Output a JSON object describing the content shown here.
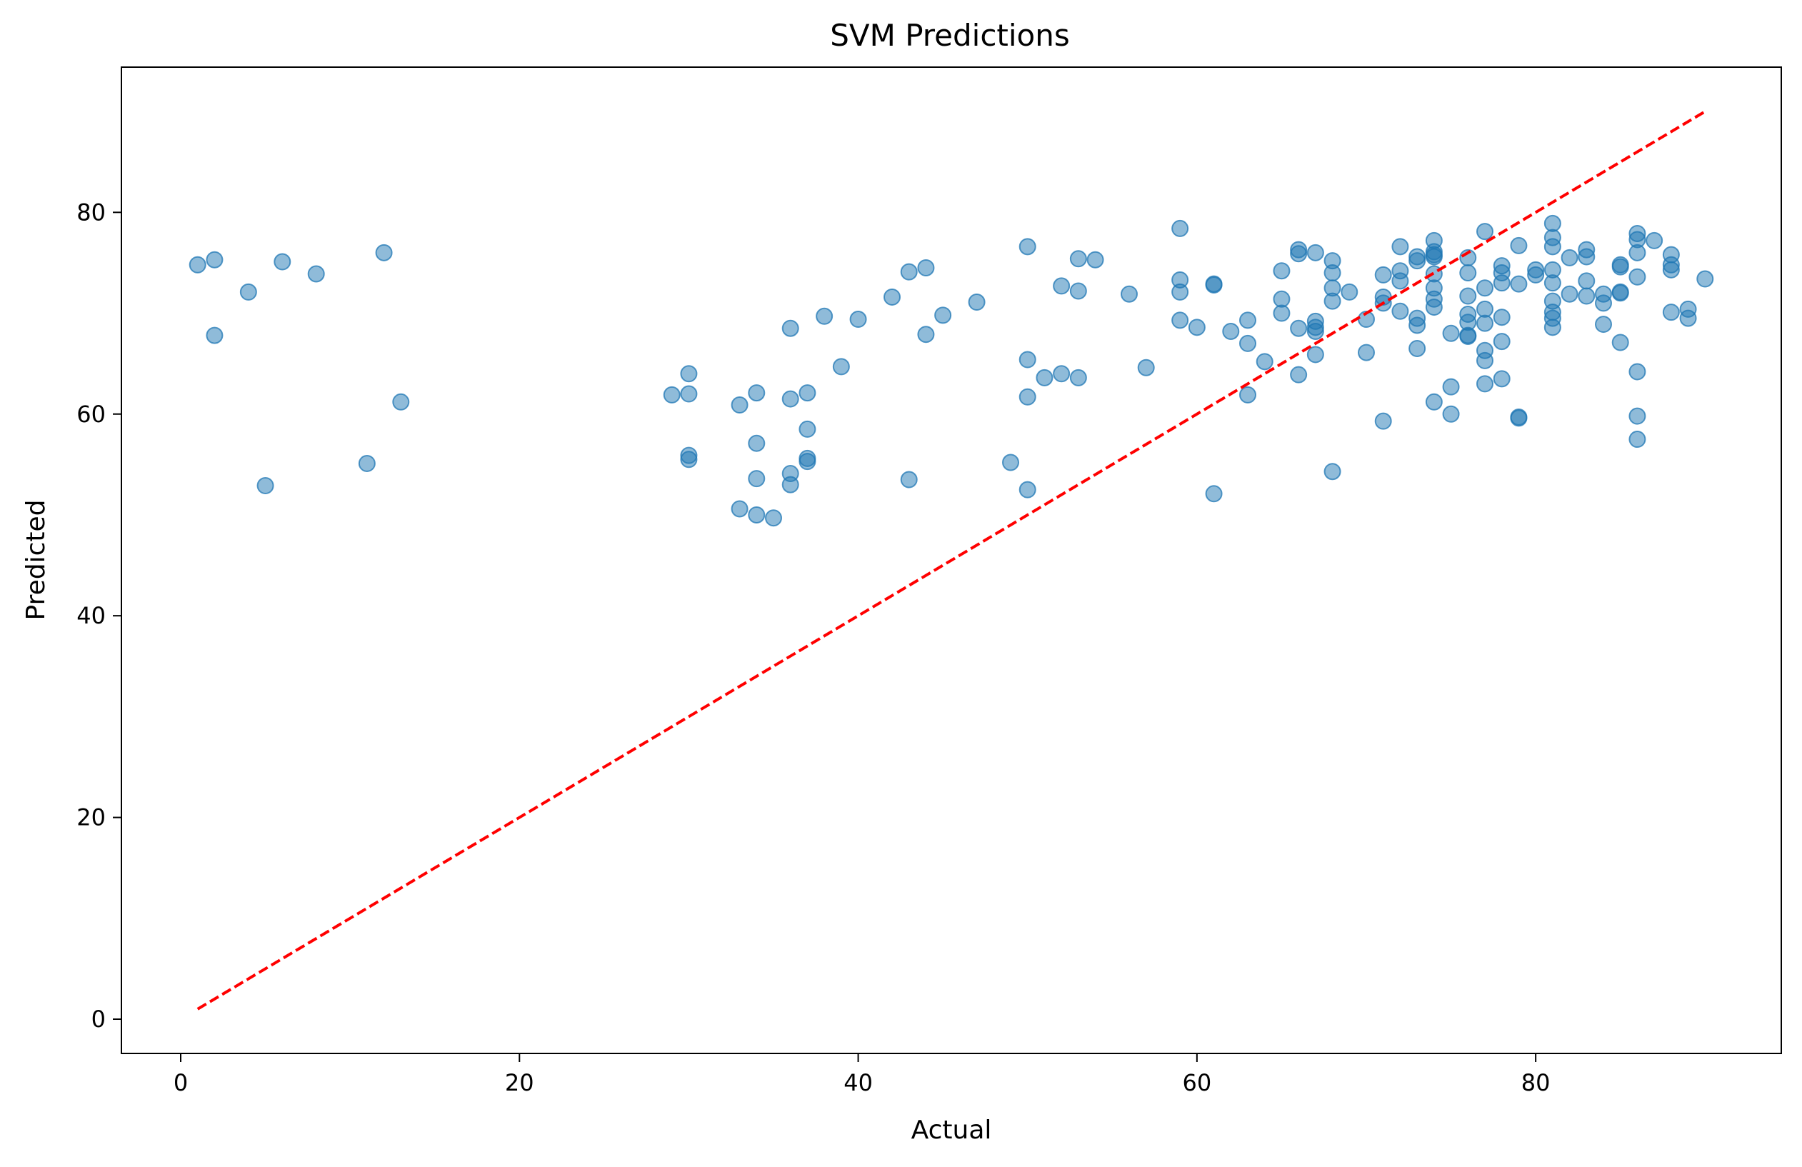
{
  "chart_data": {
    "type": "scatter",
    "title": "SVM Predictions",
    "xlabel": "Actual",
    "ylabel": "Predicted",
    "xlim": [
      -3.5,
      94.5
    ],
    "ylim": [
      -3.4,
      94.4
    ],
    "xticks": [
      0,
      20,
      40,
      60,
      80
    ],
    "yticks": [
      0,
      20,
      40,
      60,
      80
    ],
    "grid": false,
    "point_color": "#1f77b4",
    "point_alpha": 0.5,
    "line_color": "#ff0000",
    "identity_line": {
      "x": [
        1,
        90
      ],
      "y": [
        1,
        90
      ],
      "style": "dashed"
    },
    "points": [
      [
        1,
        74.8
      ],
      [
        2,
        75.3
      ],
      [
        2,
        67.8
      ],
      [
        4,
        72.1
      ],
      [
        5,
        52.9
      ],
      [
        6,
        75.1
      ],
      [
        8,
        73.9
      ],
      [
        11,
        55.1
      ],
      [
        12,
        76.0
      ],
      [
        13,
        61.2
      ],
      [
        29,
        61.9
      ],
      [
        30,
        64.0
      ],
      [
        30,
        62.0
      ],
      [
        30,
        55.9
      ],
      [
        30,
        55.5
      ],
      [
        33,
        60.9
      ],
      [
        33,
        50.6
      ],
      [
        34,
        62.1
      ],
      [
        34,
        57.1
      ],
      [
        34,
        53.6
      ],
      [
        34,
        50.0
      ],
      [
        35,
        49.7
      ],
      [
        36,
        68.5
      ],
      [
        36,
        61.5
      ],
      [
        36,
        54.1
      ],
      [
        36,
        53.0
      ],
      [
        37,
        62.1
      ],
      [
        37,
        58.5
      ],
      [
        37,
        55.6
      ],
      [
        37,
        55.3
      ],
      [
        38,
        69.7
      ],
      [
        39,
        64.7
      ],
      [
        40,
        69.4
      ],
      [
        42,
        71.6
      ],
      [
        43,
        74.1
      ],
      [
        43,
        53.5
      ],
      [
        44,
        74.5
      ],
      [
        44,
        67.9
      ],
      [
        45,
        69.8
      ],
      [
        47,
        71.1
      ],
      [
        49,
        55.2
      ],
      [
        50,
        76.6
      ],
      [
        50,
        65.4
      ],
      [
        50,
        61.7
      ],
      [
        50,
        52.5
      ],
      [
        51,
        63.6
      ],
      [
        52,
        72.7
      ],
      [
        52,
        64.0
      ],
      [
        53,
        75.4
      ],
      [
        53,
        72.2
      ],
      [
        53,
        63.6
      ],
      [
        54,
        75.3
      ],
      [
        56,
        71.9
      ],
      [
        57,
        64.6
      ],
      [
        59,
        78.4
      ],
      [
        59,
        73.3
      ],
      [
        59,
        72.1
      ],
      [
        59,
        69.3
      ],
      [
        60,
        68.6
      ],
      [
        61,
        72.8
      ],
      [
        61,
        72.9
      ],
      [
        61,
        52.1
      ],
      [
        62,
        68.2
      ],
      [
        63,
        69.3
      ],
      [
        63,
        67.0
      ],
      [
        63,
        61.9
      ],
      [
        64,
        65.2
      ],
      [
        65,
        74.2
      ],
      [
        65,
        71.4
      ],
      [
        65,
        70.0
      ],
      [
        66,
        76.3
      ],
      [
        66,
        75.9
      ],
      [
        66,
        68.5
      ],
      [
        66,
        63.9
      ],
      [
        67,
        76.0
      ],
      [
        67,
        69.2
      ],
      [
        67,
        68.6
      ],
      [
        67,
        68.2
      ],
      [
        67,
        65.9
      ],
      [
        68,
        75.2
      ],
      [
        68,
        74.0
      ],
      [
        68,
        72.5
      ],
      [
        68,
        71.2
      ],
      [
        68,
        54.3
      ],
      [
        69,
        72.1
      ],
      [
        70,
        69.4
      ],
      [
        70,
        66.1
      ],
      [
        71,
        73.8
      ],
      [
        71,
        71.6
      ],
      [
        71,
        71.0
      ],
      [
        71,
        59.3
      ],
      [
        72,
        76.6
      ],
      [
        72,
        74.2
      ],
      [
        72,
        73.2
      ],
      [
        72,
        70.2
      ],
      [
        73,
        75.6
      ],
      [
        73,
        75.2
      ],
      [
        73,
        69.5
      ],
      [
        73,
        68.8
      ],
      [
        73,
        66.5
      ],
      [
        74,
        77.2
      ],
      [
        74,
        76.1
      ],
      [
        74,
        75.6
      ],
      [
        74,
        75.8
      ],
      [
        74,
        73.9
      ],
      [
        74,
        72.5
      ],
      [
        74,
        71.4
      ],
      [
        74,
        70.6
      ],
      [
        74,
        61.2
      ],
      [
        75,
        68.0
      ],
      [
        75,
        62.7
      ],
      [
        75,
        60.0
      ],
      [
        76,
        75.5
      ],
      [
        76,
        74.0
      ],
      [
        76,
        71.7
      ],
      [
        76,
        69.9
      ],
      [
        76,
        69.1
      ],
      [
        76,
        67.7
      ],
      [
        76,
        67.8
      ],
      [
        77,
        78.1
      ],
      [
        77,
        72.5
      ],
      [
        77,
        70.4
      ],
      [
        77,
        69.0
      ],
      [
        77,
        66.3
      ],
      [
        77,
        65.3
      ],
      [
        77,
        63.0
      ],
      [
        78,
        74.7
      ],
      [
        78,
        74.0
      ],
      [
        78,
        73.0
      ],
      [
        78,
        69.6
      ],
      [
        78,
        67.2
      ],
      [
        78,
        63.5
      ],
      [
        79,
        76.7
      ],
      [
        79,
        72.9
      ],
      [
        79,
        59.7
      ],
      [
        79,
        59.6
      ],
      [
        80,
        74.3
      ],
      [
        80,
        73.8
      ],
      [
        81,
        78.9
      ],
      [
        81,
        77.5
      ],
      [
        81,
        76.6
      ],
      [
        81,
        74.3
      ],
      [
        81,
        73.0
      ],
      [
        81,
        71.2
      ],
      [
        81,
        70.1
      ],
      [
        81,
        69.5
      ],
      [
        81,
        68.6
      ],
      [
        82,
        75.5
      ],
      [
        82,
        71.9
      ],
      [
        83,
        76.3
      ],
      [
        83,
        75.6
      ],
      [
        83,
        73.2
      ],
      [
        83,
        71.7
      ],
      [
        84,
        71.9
      ],
      [
        84,
        71.0
      ],
      [
        84,
        68.9
      ],
      [
        85,
        74.8
      ],
      [
        85,
        74.6
      ],
      [
        85,
        72.0
      ],
      [
        85,
        72.1
      ],
      [
        85,
        67.1
      ],
      [
        86,
        77.9
      ],
      [
        86,
        77.3
      ],
      [
        86,
        76.0
      ],
      [
        86,
        73.6
      ],
      [
        86,
        64.2
      ],
      [
        86,
        59.8
      ],
      [
        86,
        57.5
      ],
      [
        87,
        77.2
      ],
      [
        88,
        75.8
      ],
      [
        88,
        74.8
      ],
      [
        88,
        74.3
      ],
      [
        88,
        70.1
      ],
      [
        89,
        70.4
      ],
      [
        89,
        69.5
      ],
      [
        90,
        73.4
      ]
    ]
  }
}
